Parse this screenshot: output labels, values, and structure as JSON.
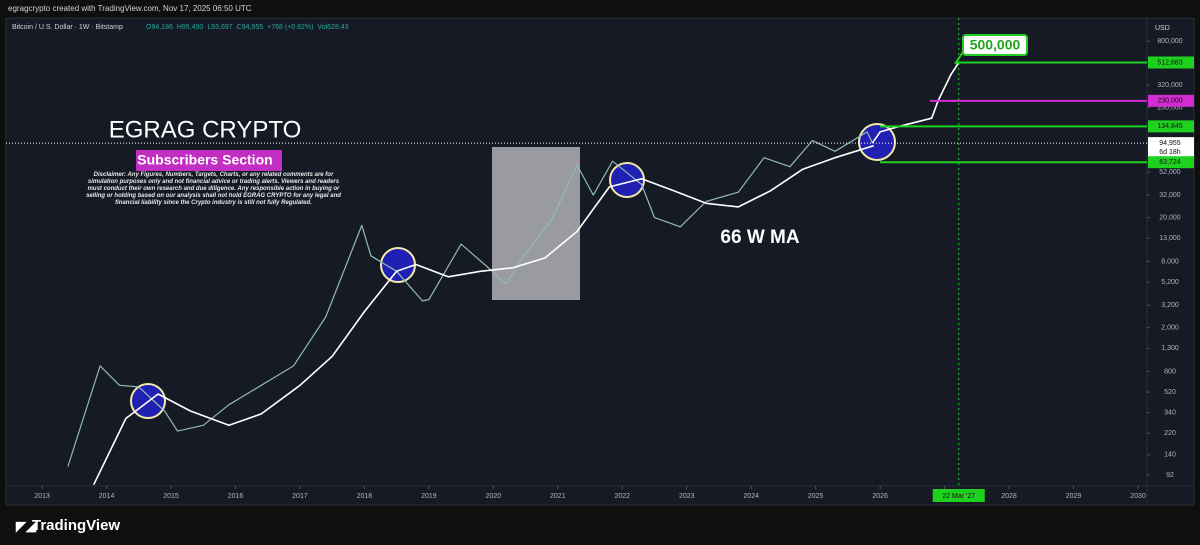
{
  "header": {
    "credit": "egragcrypto created with TradingView.com, Nov 17, 2025 06:50 UTC",
    "symbol": "Bitcoin / U.S. Dollar · 1W · Bitstamp",
    "ohlc": [
      "O94,186",
      "H95,490",
      "L93,697",
      "C94,955",
      "+768 (+0.82%)",
      "Vol628.43"
    ],
    "currency": "USD"
  },
  "chart_data": {
    "type": "line",
    "log_scale": true,
    "grid": false,
    "xlim": [
      2012.44,
      2030.14
    ],
    "xticks": [
      2013,
      2014,
      2015,
      2016,
      2017,
      2018,
      2019,
      2020,
      2021,
      2022,
      2023,
      2024,
      2025,
      2026,
      2027,
      2028,
      2029,
      2030
    ],
    "ylim": [
      73,
      1300000
    ],
    "yticks": [
      {
        "value": 92,
        "label": "92"
      },
      {
        "value": 140,
        "label": "140"
      },
      {
        "value": 220,
        "label": "220"
      },
      {
        "value": 340,
        "label": "340"
      },
      {
        "value": 520,
        "label": "520"
      },
      {
        "value": 800,
        "label": "800"
      },
      {
        "value": 1300,
        "label": "1,300"
      },
      {
        "value": 2000,
        "label": "2,000"
      },
      {
        "value": 3200,
        "label": "3,200"
      },
      {
        "value": 5200,
        "label": "5,200"
      },
      {
        "value": 8000,
        "label": "8,000"
      },
      {
        "value": 13000,
        "label": "13,000"
      },
      {
        "value": 20000,
        "label": "20,000"
      },
      {
        "value": 32000,
        "label": "32,000"
      },
      {
        "value": 52000,
        "label": "52,000"
      },
      {
        "value": 200000,
        "label": "200,000"
      },
      {
        "value": 320000,
        "label": "320,000"
      },
      {
        "value": 800000,
        "label": "800,000"
      }
    ],
    "series": [
      {
        "color": "#8fbcb0",
        "x": [
          2013.4,
          2013.9,
          2014.2,
          2014.5,
          2014.9,
          2015.1,
          2015.5,
          2015.9,
          2016.4,
          2016.9,
          2017.4,
          2017.96,
          2018.1,
          2018.5,
          2018.9,
          2019.0,
          2019.5,
          2019.9,
          2020.2,
          2020.5,
          2020.9,
          2021.3,
          2021.55,
          2021.85,
          2022.3,
          2022.5,
          2022.9,
          2023.3,
          2023.8,
          2024.2,
          2024.6,
          2024.95,
          2025.3,
          2025.8,
          2025.88
        ],
        "values": [
          110,
          900,
          600,
          580,
          350,
          230,
          260,
          400,
          600,
          900,
          2500,
          17000,
          9000,
          6500,
          3500,
          3600,
          11500,
          7200,
          5000,
          9500,
          19000,
          60000,
          32000,
          65000,
          40000,
          20000,
          16500,
          28000,
          34000,
          70000,
          58000,
          100000,
          80000,
          120000,
          94955
        ]
      },
      {
        "name": "66 W MA",
        "color": "#ffffff",
        "x": [
          2013.8,
          2014.3,
          2014.8,
          2015.3,
          2015.9,
          2016.4,
          2017.0,
          2017.5,
          2018.0,
          2018.5,
          2018.8,
          2019.3,
          2019.8,
          2020.3,
          2020.8,
          2021.3,
          2021.8,
          2022.3,
          2022.8,
          2023.3,
          2023.8,
          2024.3,
          2024.8,
          2025.3,
          2025.9
        ],
        "values": [
          75,
          300,
          500,
          350,
          260,
          330,
          600,
          1100,
          2800,
          6500,
          7500,
          5800,
          6500,
          7000,
          8600,
          15000,
          38000,
          45000,
          35000,
          27000,
          25000,
          35000,
          55000,
          70000,
          90000
        ]
      },
      {
        "color": "#ffffff",
        "x": [
          2025.88,
          2026.0,
          2026.3,
          2026.8,
          2026.9,
          2027.1,
          2027.22
        ],
        "values": [
          94955,
          120000,
          135000,
          160000,
          230000,
          400000,
          512683
        ]
      }
    ],
    "levels": [
      {
        "value": 512683,
        "label": "512,683",
        "color": "#1fd11f"
      },
      {
        "value": 230000,
        "label": "230,000",
        "color": "#d42bd4"
      },
      {
        "value": 134845,
        "label": "134,845",
        "color": "#1fd11f"
      },
      {
        "value": 94955,
        "label": "94,955",
        "color": "#ffffff"
      },
      {
        "value": 63724,
        "label": "63,724",
        "color": "#1fd11f"
      }
    ],
    "countdown": "6d 18h",
    "vline": {
      "value": 2027.22,
      "label": "22 Mar '27",
      "color": "#1fd11f"
    },
    "annotations": {
      "author": "EGRAG CRYPTO",
      "section": "Subscribers Section",
      "disclaimer": "Disclaimer: Any Figures, Numbers, Targets, Charts, or any related comments are for simulation purposes only and not financial advice or trading alerts. Viewers and readers must conduct their own research and due diligence. Any responsible action in buying or selling or holding based on our analysis shall not hold EGRAG CRYPTO for any legal and financial liability since the Crypto industry is still not fully Regulated.",
      "target": "500,000"
    }
  },
  "footer": {
    "brand": "TradingView"
  }
}
